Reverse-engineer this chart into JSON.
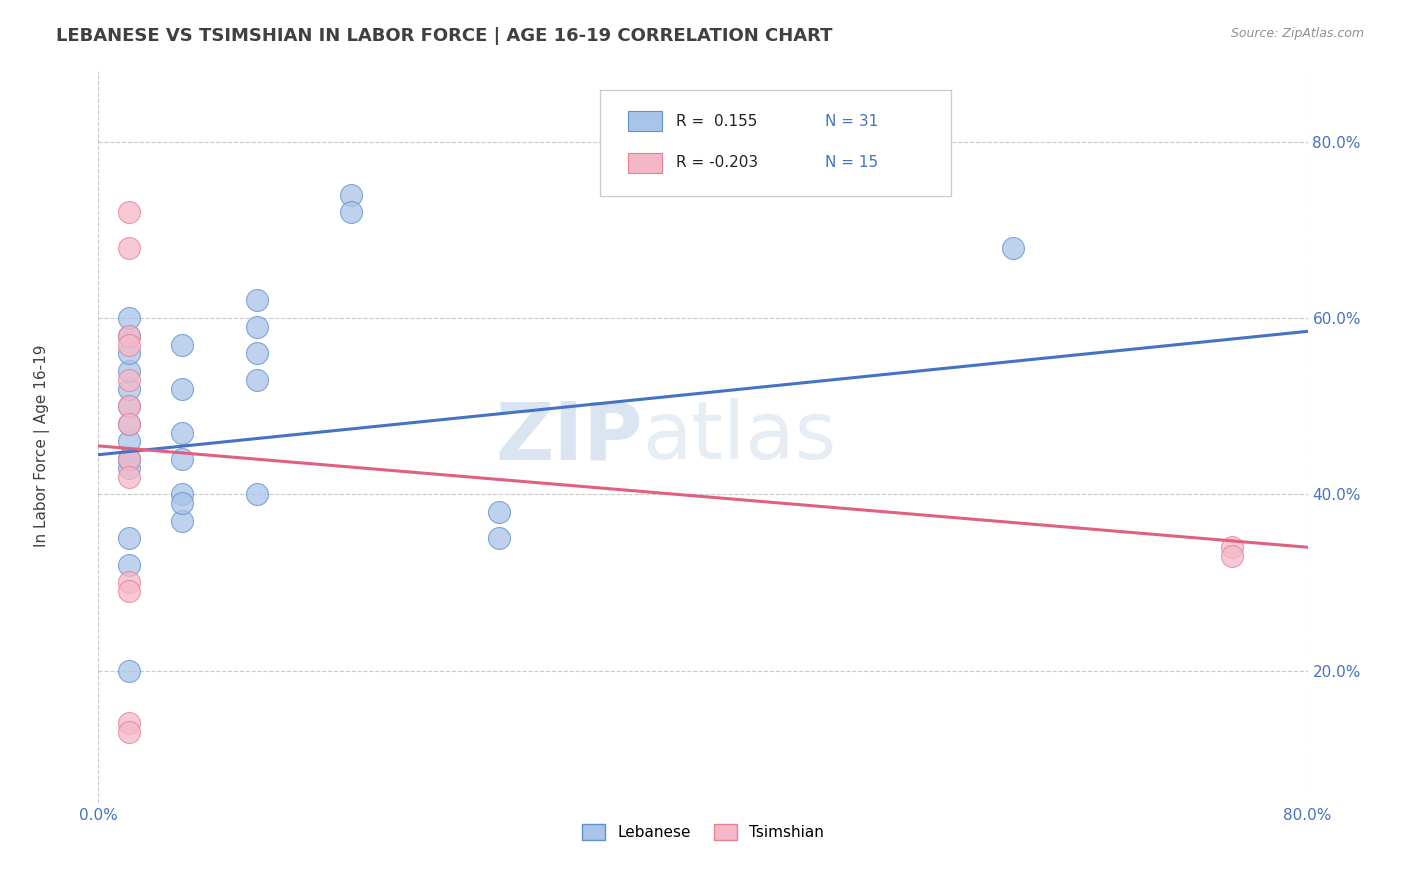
{
  "title": "LEBANESE VS TSIMSHIAN IN LABOR FORCE | AGE 16-19 CORRELATION CHART",
  "source_text": "Source: ZipAtlas.com",
  "ylabel": "In Labor Force | Age 16-19",
  "xlim": [
    0.0,
    0.8
  ],
  "ylim": [
    0.05,
    0.88
  ],
  "xticks": [
    0.0,
    0.2,
    0.4,
    0.6,
    0.8
  ],
  "xtick_labels": [
    "0.0%",
    "",
    "",
    "",
    "80.0%"
  ],
  "yticks": [
    0.2,
    0.4,
    0.6,
    0.8
  ],
  "ytick_labels": [
    "20.0%",
    "40.0%",
    "60.0%",
    "80.0%"
  ],
  "watermark_zip": "ZIP",
  "watermark_atlas": "atlas",
  "legend_r1": "R =  0.155",
  "legend_n1": "N = 31",
  "legend_r2": "R = -0.203",
  "legend_n2": "N = 15",
  "blue_scatter_color": "#a8c4e8",
  "pink_scatter_color": "#f5b8c8",
  "blue_edge_color": "#6090d0",
  "pink_edge_color": "#e88090",
  "blue_line_color": "#4472c4",
  "pink_line_color": "#e06080",
  "legend_color": "#4472c4",
  "title_color": "#404040",
  "source_color": "#909090",
  "grid_color": "#c8c8c8",
  "bg_color": "#ffffff",
  "lebanese_x": [
    0.02,
    0.02,
    0.02,
    0.02,
    0.02,
    0.02,
    0.02,
    0.02,
    0.02,
    0.02,
    0.02,
    0.02,
    0.02,
    0.02,
    0.055,
    0.055,
    0.055,
    0.055,
    0.055,
    0.055,
    0.055,
    0.105,
    0.105,
    0.105,
    0.105,
    0.105,
    0.167,
    0.167,
    0.265,
    0.265,
    0.605
  ],
  "lebanese_y": [
    0.44,
    0.43,
    0.44,
    0.46,
    0.48,
    0.5,
    0.52,
    0.54,
    0.56,
    0.58,
    0.6,
    0.35,
    0.32,
    0.2,
    0.57,
    0.52,
    0.47,
    0.44,
    0.4,
    0.37,
    0.39,
    0.62,
    0.59,
    0.56,
    0.53,
    0.4,
    0.74,
    0.72,
    0.38,
    0.35,
    0.68
  ],
  "tsimshian_x": [
    0.02,
    0.02,
    0.02,
    0.02,
    0.02,
    0.02,
    0.02,
    0.02,
    0.02,
    0.02,
    0.02,
    0.02,
    0.02,
    0.75,
    0.75
  ],
  "tsimshian_y": [
    0.72,
    0.68,
    0.58,
    0.57,
    0.53,
    0.5,
    0.48,
    0.44,
    0.42,
    0.3,
    0.29,
    0.14,
    0.13,
    0.34,
    0.33
  ],
  "blue_trend": [
    0.0,
    0.445,
    0.8,
    0.585
  ],
  "pink_trend": [
    0.0,
    0.455,
    0.8,
    0.34
  ],
  "bottom_legend_labels": [
    "Lebanese",
    "Tsimshian"
  ]
}
